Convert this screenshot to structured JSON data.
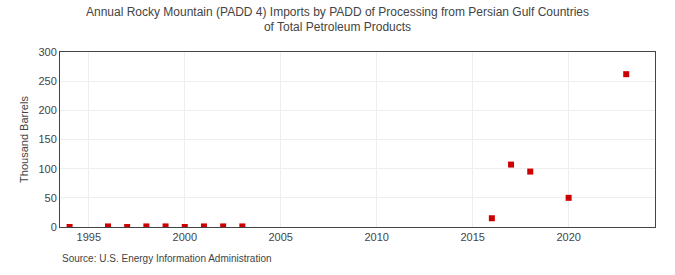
{
  "chart_data": {
    "type": "scatter",
    "title": "Annual Rocky Mountain (PADD 4) Imports by PADD of Processing from Persian Gulf Countries\nof Total Petroleum Products",
    "ylabel": "Thousand Barrels",
    "annotations": [
      "Source: U.S. Energy Information Administration"
    ],
    "x": [
      1994,
      1996,
      1997,
      1998,
      1999,
      2000,
      2001,
      2002,
      2003,
      2016,
      2017,
      2018,
      2020,
      2023
    ],
    "values": [
      0,
      1,
      0,
      1,
      1,
      0,
      1,
      1,
      1,
      15,
      107,
      95,
      50,
      262
    ],
    "color": "#cc0000",
    "marker": "square",
    "xlim": [
      1993.5,
      2024.5
    ],
    "xticks": [
      1995,
      2000,
      2005,
      2010,
      2015,
      2020
    ],
    "ylim": [
      0,
      300
    ],
    "yticks": [
      0,
      50,
      100,
      150,
      200,
      250,
      300
    ],
    "grid": true
  }
}
